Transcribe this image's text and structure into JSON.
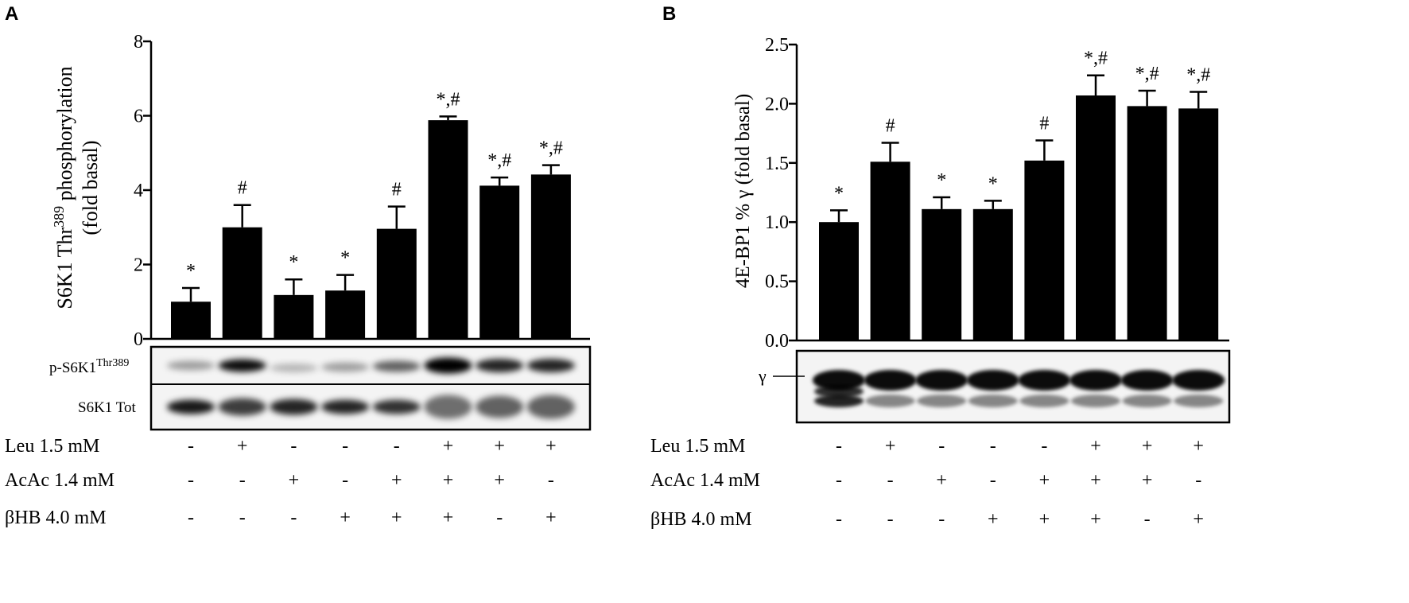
{
  "chart_data": [
    {
      "panel_label": "A",
      "type": "bar",
      "ylabel_lines": [
        "S6K1 Thr",
        "389",
        " phosphorylation",
        "(fold basal)"
      ],
      "ylim": [
        0,
        8
      ],
      "yticks": [
        "0",
        "2",
        "4",
        "6",
        "8"
      ],
      "values": [
        1.0,
        3.0,
        1.18,
        1.3,
        2.96,
        5.88,
        4.12,
        4.42
      ],
      "errors": [
        0.37,
        0.6,
        0.42,
        0.42,
        0.6,
        0.1,
        0.22,
        0.25
      ],
      "annotations": [
        "*",
        "#",
        "*",
        "*",
        "#",
        "*,#",
        "*,#",
        "*,#"
      ],
      "blot_rows": [
        {
          "label": "p-S6K1",
          "sup": "Thr389"
        },
        {
          "label": "S6K1 Tot",
          "sup": ""
        }
      ],
      "conditions": [
        {
          "label": "Leu 1.5 mM",
          "signs": [
            "-",
            "+",
            "-",
            "-",
            "-",
            "+",
            "+",
            "+"
          ]
        },
        {
          "label": "AcAc 1.4 mM",
          "signs": [
            "-",
            "-",
            "+",
            "-",
            "+",
            "+",
            "+",
            "-"
          ]
        },
        {
          "label": "βHB 4.0 mM",
          "signs": [
            "-",
            "-",
            "-",
            "+",
            "+",
            "+",
            "-",
            "+"
          ]
        }
      ]
    },
    {
      "panel_label": "B",
      "type": "bar",
      "ylabel_lines": [
        "4E-BP1 % γ (fold basal)"
      ],
      "ylim": [
        0,
        2.5
      ],
      "yticks": [
        "0.0",
        "0.5",
        "1.0",
        "1.5",
        "2.0",
        "2.5"
      ],
      "values": [
        1.0,
        1.51,
        1.11,
        1.11,
        1.52,
        2.07,
        1.98,
        1.96
      ],
      "errors": [
        0.1,
        0.16,
        0.1,
        0.07,
        0.17,
        0.17,
        0.13,
        0.14
      ],
      "annotations": [
        "*",
        "#",
        "*",
        "*",
        "#",
        "*,#",
        "*,#",
        "*,#"
      ],
      "blot_rows": [
        {
          "label": "γ",
          "sup": ""
        }
      ],
      "conditions": [
        {
          "label": "Leu 1.5 mM",
          "signs": [
            "-",
            "+",
            "-",
            "-",
            "-",
            "+",
            "+",
            "+"
          ]
        },
        {
          "label": "AcAc 1.4 mM",
          "signs": [
            "-",
            "-",
            "+",
            "-",
            "+",
            "+",
            "+",
            "-"
          ]
        },
        {
          "label": "βHB 4.0 mM",
          "signs": [
            "-",
            "-",
            "-",
            "+",
            "+",
            "+",
            "-",
            "+"
          ]
        }
      ]
    }
  ]
}
